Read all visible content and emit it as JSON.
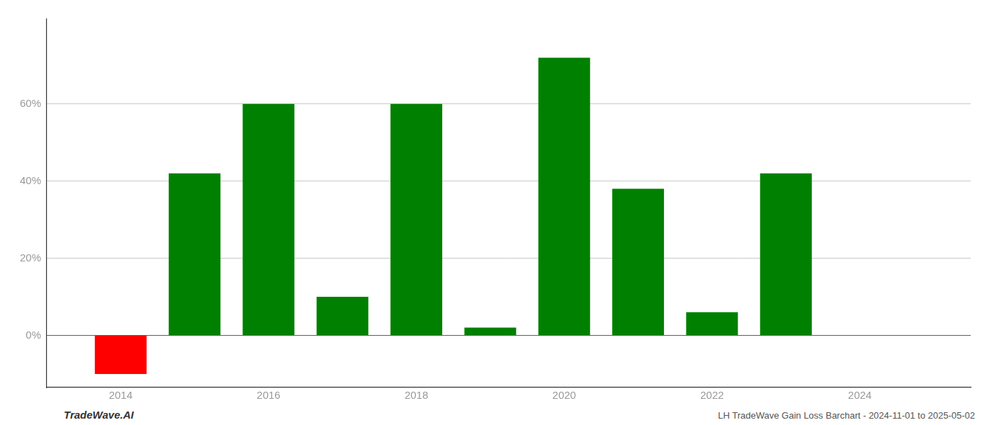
{
  "chart_data": {
    "type": "bar",
    "x": [
      2014,
      2015,
      2016,
      2017,
      2018,
      2019,
      2020,
      2021,
      2022,
      2023
    ],
    "values": [
      -0.1,
      0.42,
      0.6,
      0.1,
      0.6,
      0.02,
      0.72,
      0.38,
      0.06,
      0.42
    ],
    "colors": [
      "#ff0000",
      "#008000",
      "#008000",
      "#008000",
      "#008000",
      "#008000",
      "#008000",
      "#008000",
      "#008000",
      "#008000"
    ],
    "xlim": [
      2013.0,
      2025.5
    ],
    "xticks": [
      2014,
      2016,
      2018,
      2020,
      2022,
      2024
    ],
    "ylim": [
      -0.135,
      0.82
    ],
    "yticks": [
      {
        "value": 0.0,
        "label": "0%"
      },
      {
        "value": 0.2,
        "label": "20%"
      },
      {
        "value": 0.4,
        "label": "40%"
      },
      {
        "value": 0.6,
        "label": "60%"
      }
    ],
    "grid": "y",
    "annotations": [
      "TradeWave.AI",
      "LH TradeWave Gain Loss Barchart - 2024-11-01 to 2025-05-02"
    ]
  }
}
